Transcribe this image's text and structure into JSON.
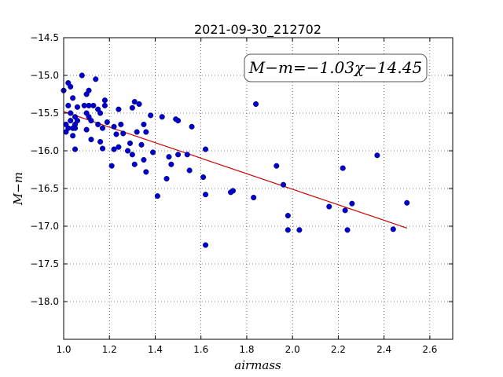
{
  "chart_data": {
    "type": "scatter",
    "title": "2021-09-30_212702",
    "xlabel": "airmass",
    "ylabel": "M−m",
    "xlim": [
      1.0,
      2.7
    ],
    "ylim": [
      -18.5,
      -14.5
    ],
    "y_inverted": true,
    "grid": true,
    "x_ticks": [
      "1.0",
      "1.2",
      "1.4",
      "1.6",
      "1.8",
      "2.0",
      "2.2",
      "2.4",
      "2.6"
    ],
    "y_ticks": [
      "−14.5",
      "−15.0",
      "−15.5",
      "−16.0",
      "−16.5",
      "−17.0",
      "−17.5",
      "−18.0"
    ],
    "annotation": "M−m=−1.03χ−14.45",
    "point_color": "#0000cc",
    "fit_color": "#cc0000",
    "fit_line": {
      "slope": -1.03,
      "intercept": -14.45,
      "x_range": [
        1.0,
        2.5
      ]
    },
    "points": [
      [
        1.0,
        -15.2
      ],
      [
        1.01,
        -15.65
      ],
      [
        1.01,
        -15.75
      ],
      [
        1.02,
        -15.1
      ],
      [
        1.02,
        -15.4
      ],
      [
        1.02,
        -15.7
      ],
      [
        1.03,
        -15.6
      ],
      [
        1.03,
        -15.5
      ],
      [
        1.03,
        -15.15
      ],
      [
        1.04,
        -15.3
      ],
      [
        1.04,
        -15.7
      ],
      [
        1.04,
        -15.8
      ],
      [
        1.05,
        -15.55
      ],
      [
        1.05,
        -15.65
      ],
      [
        1.05,
        -15.7
      ],
      [
        1.05,
        -15.98
      ],
      [
        1.06,
        -15.6
      ],
      [
        1.06,
        -15.42
      ],
      [
        1.08,
        -15.0
      ],
      [
        1.09,
        -15.4
      ],
      [
        1.1,
        -15.25
      ],
      [
        1.1,
        -15.5
      ],
      [
        1.1,
        -15.72
      ],
      [
        1.11,
        -15.2
      ],
      [
        1.11,
        -15.4
      ],
      [
        1.11,
        -15.55
      ],
      [
        1.12,
        -15.6
      ],
      [
        1.12,
        -15.85
      ],
      [
        1.13,
        -15.4
      ],
      [
        1.14,
        -15.05
      ],
      [
        1.15,
        -15.45
      ],
      [
        1.15,
        -15.65
      ],
      [
        1.16,
        -15.5
      ],
      [
        1.16,
        -15.88
      ],
      [
        1.17,
        -15.7
      ],
      [
        1.17,
        -15.97
      ],
      [
        1.18,
        -15.33
      ],
      [
        1.18,
        -15.4
      ],
      [
        1.19,
        -15.62
      ],
      [
        1.21,
        -16.2
      ],
      [
        1.22,
        -15.68
      ],
      [
        1.22,
        -15.98
      ],
      [
        1.23,
        -15.78
      ],
      [
        1.24,
        -15.45
      ],
      [
        1.24,
        -15.95
      ],
      [
        1.25,
        -15.65
      ],
      [
        1.26,
        -15.77
      ],
      [
        1.28,
        -16.0
      ],
      [
        1.29,
        -15.9
      ],
      [
        1.3,
        -15.43
      ],
      [
        1.3,
        -16.05
      ],
      [
        1.31,
        -15.35
      ],
      [
        1.31,
        -16.18
      ],
      [
        1.32,
        -15.75
      ],
      [
        1.33,
        -15.38
      ],
      [
        1.34,
        -15.92
      ],
      [
        1.35,
        -15.65
      ],
      [
        1.35,
        -16.12
      ],
      [
        1.36,
        -15.75
      ],
      [
        1.36,
        -16.28
      ],
      [
        1.38,
        -15.53
      ],
      [
        1.39,
        -16.02
      ],
      [
        1.41,
        -16.6
      ],
      [
        1.43,
        -15.55
      ],
      [
        1.45,
        -16.37
      ],
      [
        1.46,
        -16.08
      ],
      [
        1.47,
        -16.18
      ],
      [
        1.49,
        -15.58
      ],
      [
        1.5,
        -15.6
      ],
      [
        1.5,
        -16.05
      ],
      [
        1.54,
        -16.05
      ],
      [
        1.55,
        -16.26
      ],
      [
        1.56,
        -15.68
      ],
      [
        1.61,
        -16.35
      ],
      [
        1.62,
        -15.98
      ],
      [
        1.62,
        -16.58
      ],
      [
        1.62,
        -17.25
      ],
      [
        1.73,
        -16.55
      ],
      [
        1.74,
        -16.53
      ],
      [
        1.83,
        -16.62
      ],
      [
        1.84,
        -15.38
      ],
      [
        1.93,
        -16.2
      ],
      [
        1.96,
        -16.45
      ],
      [
        1.98,
        -16.86
      ],
      [
        1.98,
        -17.05
      ],
      [
        2.03,
        -17.05
      ],
      [
        2.16,
        -16.74
      ],
      [
        2.22,
        -16.23
      ],
      [
        2.23,
        -16.79
      ],
      [
        2.24,
        -17.05
      ],
      [
        2.26,
        -16.7
      ],
      [
        2.37,
        -16.06
      ],
      [
        2.44,
        -17.04
      ],
      [
        2.5,
        -16.69
      ]
    ]
  }
}
